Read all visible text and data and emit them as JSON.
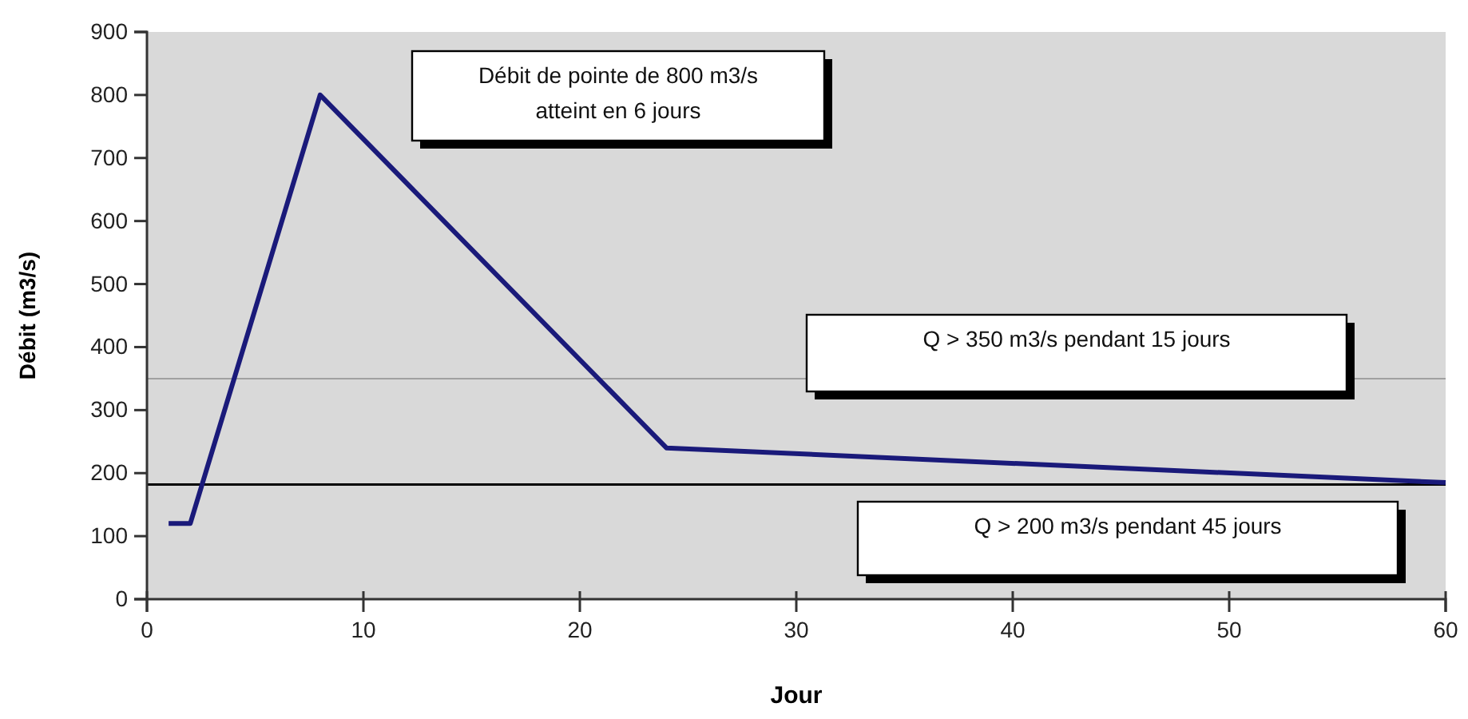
{
  "chart_data": {
    "type": "line",
    "xlabel": "Jour",
    "ylabel": "Débit (m3/s)",
    "x": [
      1,
      2,
      8,
      24,
      60
    ],
    "series": [
      {
        "color": "#1a1a7a",
        "values": [
          120,
          120,
          800,
          240,
          185
        ]
      }
    ],
    "xlim": [
      0,
      60
    ],
    "xticks": [
      0,
      10,
      20,
      30,
      40,
      50,
      60
    ],
    "ylim": [
      0,
      900
    ],
    "yticks": [
      0,
      100,
      200,
      300,
      400,
      500,
      600,
      700,
      800,
      900
    ],
    "grid": false,
    "marker": "none",
    "line_style": "solid",
    "ref_lines": [
      {
        "axis": "y",
        "value": 350,
        "color": "#a0a0a0"
      },
      {
        "axis": "y",
        "value": 182,
        "color": "#000000"
      }
    ],
    "annotations": [
      "Débit de pointe de 800 m3/s\natteint en 6 jours",
      "Q > 350 m3/s pendant 15 jours",
      "Q > 200 m3/s pendant 45 jours"
    ]
  }
}
